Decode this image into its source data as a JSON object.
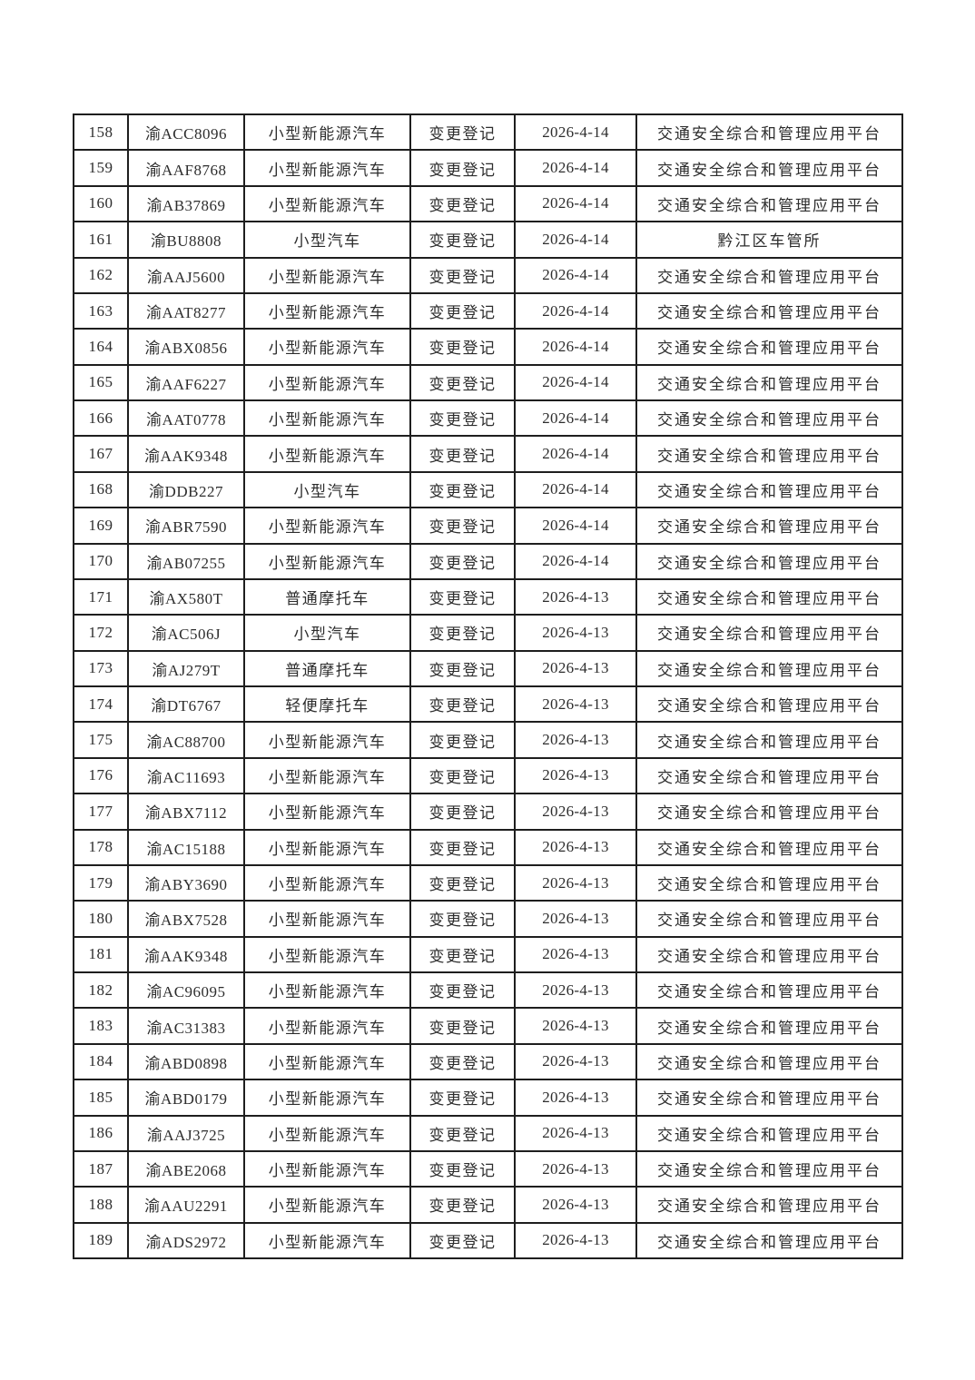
{
  "page": {
    "background_color": "#ffffff",
    "text_color": "#2d2d2d",
    "border_color": "#1e1e1e"
  },
  "table": {
    "first_row_number": "158",
    "last_row_number": "189",
    "rows": [
      {
        "no": "158",
        "plate": "渝ACC8096",
        "vehicle_type": "小型新能源汽车",
        "registration_type": "变更登记",
        "date": "2026-4-14",
        "authority": "交通安全综合和管理应用平台"
      },
      {
        "no": "159",
        "plate": "渝AAF8768",
        "vehicle_type": "小型新能源汽车",
        "registration_type": "变更登记",
        "date": "2026-4-14",
        "authority": "交通安全综合和管理应用平台"
      },
      {
        "no": "160",
        "plate": "渝AB37869",
        "vehicle_type": "小型新能源汽车",
        "registration_type": "变更登记",
        "date": "2026-4-14",
        "authority": "交通安全综合和管理应用平台"
      },
      {
        "no": "161",
        "plate": "渝BU8808",
        "vehicle_type": "小型汽车",
        "registration_type": "变更登记",
        "date": "2026-4-14",
        "authority": "黔江区车管所"
      },
      {
        "no": "162",
        "plate": "渝AAJ5600",
        "vehicle_type": "小型新能源汽车",
        "registration_type": "变更登记",
        "date": "2026-4-14",
        "authority": "交通安全综合和管理应用平台"
      },
      {
        "no": "163",
        "plate": "渝AAT8277",
        "vehicle_type": "小型新能源汽车",
        "registration_type": "变更登记",
        "date": "2026-4-14",
        "authority": "交通安全综合和管理应用平台"
      },
      {
        "no": "164",
        "plate": "渝ABX0856",
        "vehicle_type": "小型新能源汽车",
        "registration_type": "变更登记",
        "date": "2026-4-14",
        "authority": "交通安全综合和管理应用平台"
      },
      {
        "no": "165",
        "plate": "渝AAF6227",
        "vehicle_type": "小型新能源汽车",
        "registration_type": "变更登记",
        "date": "2026-4-14",
        "authority": "交通安全综合和管理应用平台"
      },
      {
        "no": "166",
        "plate": "渝AAT0778",
        "vehicle_type": "小型新能源汽车",
        "registration_type": "变更登记",
        "date": "2026-4-14",
        "authority": "交通安全综合和管理应用平台"
      },
      {
        "no": "167",
        "plate": "渝AAK9348",
        "vehicle_type": "小型新能源汽车",
        "registration_type": "变更登记",
        "date": "2026-4-14",
        "authority": "交通安全综合和管理应用平台"
      },
      {
        "no": "168",
        "plate": "渝DDB227",
        "vehicle_type": "小型汽车",
        "registration_type": "变更登记",
        "date": "2026-4-14",
        "authority": "交通安全综合和管理应用平台"
      },
      {
        "no": "169",
        "plate": "渝ABR7590",
        "vehicle_type": "小型新能源汽车",
        "registration_type": "变更登记",
        "date": "2026-4-14",
        "authority": "交通安全综合和管理应用平台"
      },
      {
        "no": "170",
        "plate": "渝AB07255",
        "vehicle_type": "小型新能源汽车",
        "registration_type": "变更登记",
        "date": "2026-4-14",
        "authority": "交通安全综合和管理应用平台"
      },
      {
        "no": "171",
        "plate": "渝AX580T",
        "vehicle_type": "普通摩托车",
        "registration_type": "变更登记",
        "date": "2026-4-13",
        "authority": "交通安全综合和管理应用平台"
      },
      {
        "no": "172",
        "plate": "渝AC506J",
        "vehicle_type": "小型汽车",
        "registration_type": "变更登记",
        "date": "2026-4-13",
        "authority": "交通安全综合和管理应用平台"
      },
      {
        "no": "173",
        "plate": "渝AJ279T",
        "vehicle_type": "普通摩托车",
        "registration_type": "变更登记",
        "date": "2026-4-13",
        "authority": "交通安全综合和管理应用平台"
      },
      {
        "no": "174",
        "plate": "渝DT6767",
        "vehicle_type": "轻便摩托车",
        "registration_type": "变更登记",
        "date": "2026-4-13",
        "authority": "交通安全综合和管理应用平台"
      },
      {
        "no": "175",
        "plate": "渝AC88700",
        "vehicle_type": "小型新能源汽车",
        "registration_type": "变更登记",
        "date": "2026-4-13",
        "authority": "交通安全综合和管理应用平台"
      },
      {
        "no": "176",
        "plate": "渝AC11693",
        "vehicle_type": "小型新能源汽车",
        "registration_type": "变更登记",
        "date": "2026-4-13",
        "authority": "交通安全综合和管理应用平台"
      },
      {
        "no": "177",
        "plate": "渝ABX7112",
        "vehicle_type": "小型新能源汽车",
        "registration_type": "变更登记",
        "date": "2026-4-13",
        "authority": "交通安全综合和管理应用平台"
      },
      {
        "no": "178",
        "plate": "渝AC15188",
        "vehicle_type": "小型新能源汽车",
        "registration_type": "变更登记",
        "date": "2026-4-13",
        "authority": "交通安全综合和管理应用平台"
      },
      {
        "no": "179",
        "plate": "渝ABY3690",
        "vehicle_type": "小型新能源汽车",
        "registration_type": "变更登记",
        "date": "2026-4-13",
        "authority": "交通安全综合和管理应用平台"
      },
      {
        "no": "180",
        "plate": "渝ABX7528",
        "vehicle_type": "小型新能源汽车",
        "registration_type": "变更登记",
        "date": "2026-4-13",
        "authority": "交通安全综合和管理应用平台"
      },
      {
        "no": "181",
        "plate": "渝AAK9348",
        "vehicle_type": "小型新能源汽车",
        "registration_type": "变更登记",
        "date": "2026-4-13",
        "authority": "交通安全综合和管理应用平台"
      },
      {
        "no": "182",
        "plate": "渝AC96095",
        "vehicle_type": "小型新能源汽车",
        "registration_type": "变更登记",
        "date": "2026-4-13",
        "authority": "交通安全综合和管理应用平台"
      },
      {
        "no": "183",
        "plate": "渝AC31383",
        "vehicle_type": "小型新能源汽车",
        "registration_type": "变更登记",
        "date": "2026-4-13",
        "authority": "交通安全综合和管理应用平台"
      },
      {
        "no": "184",
        "plate": "渝ABD0898",
        "vehicle_type": "小型新能源汽车",
        "registration_type": "变更登记",
        "date": "2026-4-13",
        "authority": "交通安全综合和管理应用平台"
      },
      {
        "no": "185",
        "plate": "渝ABD0179",
        "vehicle_type": "小型新能源汽车",
        "registration_type": "变更登记",
        "date": "2026-4-13",
        "authority": "交通安全综合和管理应用平台"
      },
      {
        "no": "186",
        "plate": "渝AAJ3725",
        "vehicle_type": "小型新能源汽车",
        "registration_type": "变更登记",
        "date": "2026-4-13",
        "authority": "交通安全综合和管理应用平台"
      },
      {
        "no": "187",
        "plate": "渝ABE2068",
        "vehicle_type": "小型新能源汽车",
        "registration_type": "变更登记",
        "date": "2026-4-13",
        "authority": "交通安全综合和管理应用平台"
      },
      {
        "no": "188",
        "plate": "渝AAU2291",
        "vehicle_type": "小型新能源汽车",
        "registration_type": "变更登记",
        "date": "2026-4-13",
        "authority": "交通安全综合和管理应用平台"
      },
      {
        "no": "189",
        "plate": "渝ADS2972",
        "vehicle_type": "小型新能源汽车",
        "registration_type": "变更登记",
        "date": "2026-4-13",
        "authority": "交通安全综合和管理应用平台"
      }
    ]
  }
}
